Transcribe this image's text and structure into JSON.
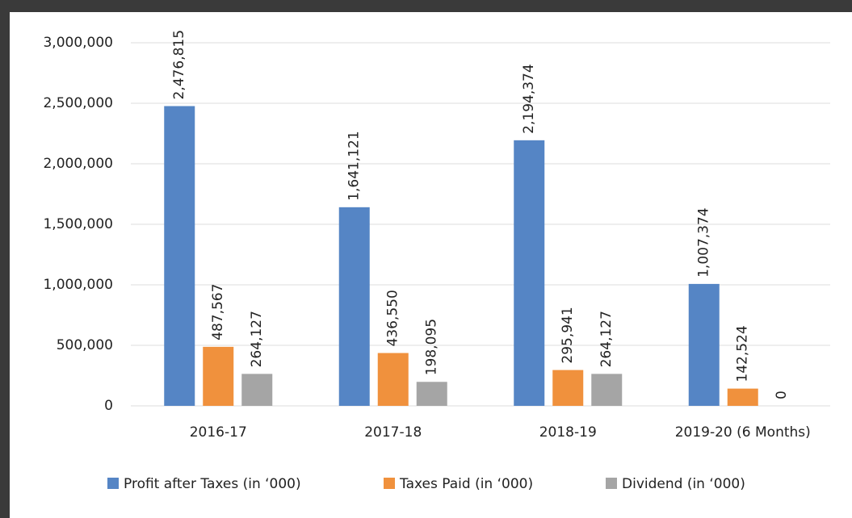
{
  "chart_data": {
    "type": "bar",
    "categories": [
      "2016-17",
      "2017-18",
      "2018-19",
      "2019-20 (6 Months)"
    ],
    "series": [
      {
        "name": "Profit after Taxes (in ‘000)",
        "color": "#5585c5",
        "values": [
          2476815,
          1641121,
          2194374,
          1007374
        ],
        "value_labels": [
          "2,476,815",
          "1,641,121",
          "2,194,374",
          "1,007,374"
        ]
      },
      {
        "name": "Taxes Paid (in ‘000)",
        "color": "#f0913d",
        "values": [
          487567,
          436550,
          295941,
          142524
        ],
        "value_labels": [
          "487,567",
          "436,550",
          "295,941",
          "142,524"
        ]
      },
      {
        "name": "Dividend (in ‘000)",
        "color": "#a5a5a5",
        "values": [
          264127,
          198095,
          264127,
          0
        ],
        "value_labels": [
          "264,127",
          "198,095",
          "264,127",
          "0"
        ]
      }
    ],
    "ylim": [
      0,
      3000000
    ],
    "yticks": [
      0,
      {
        "value": 500000,
        "label": "500,000"
      },
      {
        "value": 1000000,
        "label": "1,000,000"
      },
      {
        "value": 1500000,
        "label": "1,500,000"
      },
      {
        "value": 2000000,
        "label": "2,000,000"
      },
      {
        "value": 2500000,
        "label": "2,500,000"
      },
      {
        "value": 3000000,
        "label": "3,000,000"
      }
    ],
    "grid": true,
    "legend": "bottom"
  }
}
